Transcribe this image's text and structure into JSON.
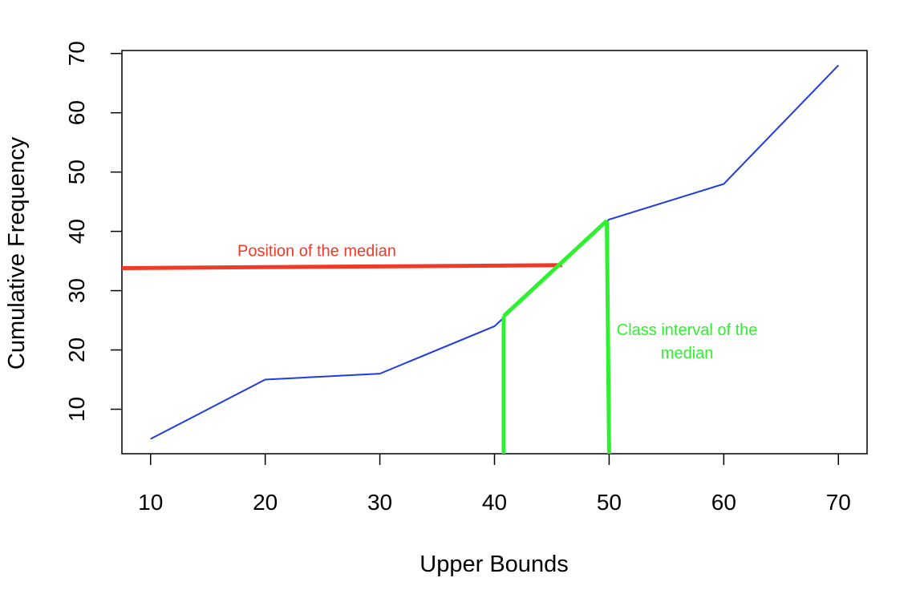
{
  "chart_data": {
    "type": "line",
    "title": "",
    "xlabel": "Upper Bounds",
    "ylabel": "Cumulative Frequency",
    "xlim": [
      7.5,
      72.5
    ],
    "ylim": [
      2.5,
      70.5
    ],
    "x_ticks": [
      10,
      20,
      30,
      40,
      50,
      60,
      70
    ],
    "y_ticks": [
      10,
      20,
      30,
      40,
      50,
      60,
      70
    ],
    "grid": false,
    "series": [
      {
        "x": [
          10,
          20,
          30,
          40,
          50,
          60,
          70
        ],
        "y": [
          5,
          15,
          16,
          24,
          42,
          48,
          68
        ],
        "color": "#1f3de0"
      }
    ],
    "annotations": {
      "median_position": {
        "text": "Position of the median",
        "color": "#f03a28",
        "line": {
          "x": [
            7.5,
            45.9
          ],
          "y": [
            33.8,
            34.3
          ]
        },
        "label_at": {
          "x": 24.5,
          "y": 35.8
        }
      },
      "median_class": {
        "lines": [
          "Class interval of the",
          "median"
        ],
        "color": "#2ff02f",
        "segments": [
          {
            "x": [
              40.8,
              40.8
            ],
            "y": [
              2.5,
              25.7
            ]
          },
          {
            "x": [
              40.8,
              49.8
            ],
            "y": [
              25.7,
              41.8
            ]
          },
          {
            "x": [
              49.8,
              50.0
            ],
            "y": [
              41.8,
              2.5
            ]
          }
        ],
        "label_at": {
          "x": 56.8,
          "y": 22.5
        }
      }
    }
  }
}
